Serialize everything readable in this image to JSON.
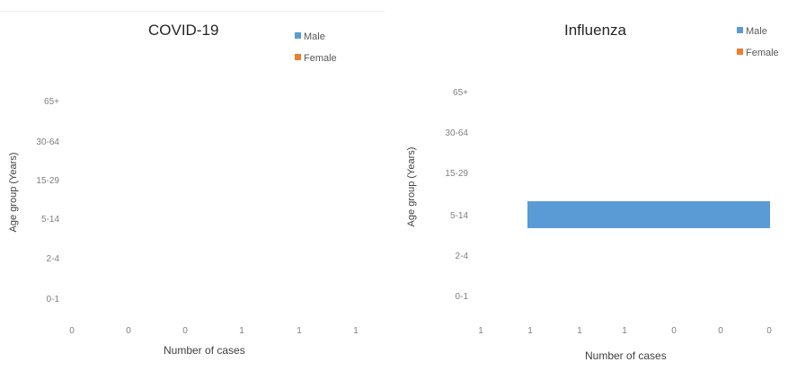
{
  "colors": {
    "male": "#5b9bd5",
    "female": "#ed7d31"
  },
  "chart_data": [
    {
      "type": "bar",
      "orientation": "horizontal",
      "title": "COVID-19",
      "xlabel": "Number of cases",
      "ylabel": "Age group (Years)",
      "categories": [
        "65+",
        "30-64",
        "15-29",
        "5-14",
        "2-4",
        "0-1"
      ],
      "x_tick_labels": [
        "0",
        "0",
        "0",
        "1",
        "1",
        "1"
      ],
      "legend": [
        "Male",
        "Female"
      ],
      "legend_position": "top-right",
      "grid": false,
      "series": [
        {
          "name": "Male",
          "values": [
            0,
            0,
            0,
            0,
            0,
            0
          ]
        },
        {
          "name": "Female",
          "values": [
            0,
            0,
            0,
            0,
            0,
            0
          ]
        }
      ]
    },
    {
      "type": "bar",
      "orientation": "horizontal",
      "title": "Influenza",
      "xlabel": "Number of cases",
      "ylabel": "Age group (Years)",
      "categories": [
        "65+",
        "30-64",
        "15-29",
        "5-14",
        "2-4",
        "0-1"
      ],
      "x_tick_labels": [
        "1",
        "1",
        "1",
        "1",
        "0",
        "0",
        "0"
      ],
      "legend": [
        "Male",
        "Female"
      ],
      "legend_position": "top-right",
      "grid": false,
      "series": [
        {
          "name": "Male",
          "values": [
            0,
            0,
            0,
            1,
            0,
            0
          ]
        },
        {
          "name": "Female",
          "values": [
            0,
            0,
            0,
            0,
            0,
            0
          ]
        }
      ]
    }
  ]
}
